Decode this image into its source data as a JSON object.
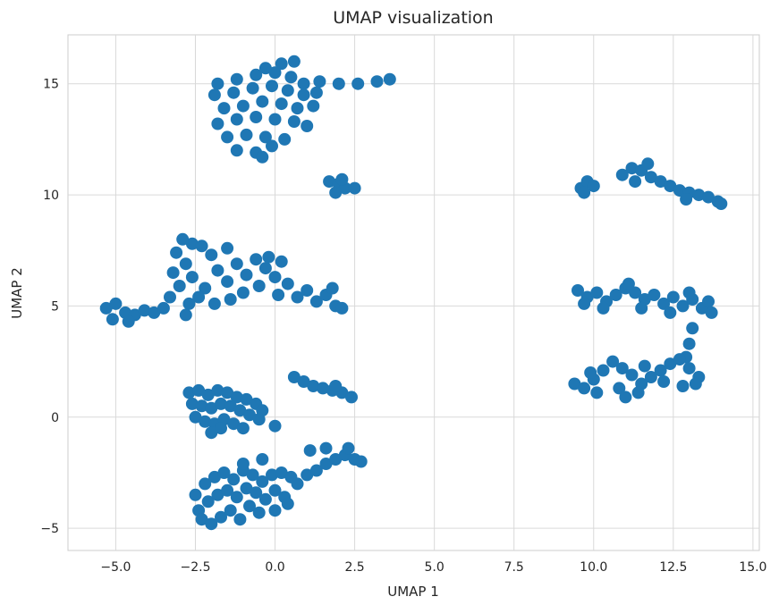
{
  "chart_data": {
    "type": "scatter",
    "title": "UMAP visualization",
    "xlabel": "UMAP 1",
    "ylabel": "UMAP 2",
    "xlim": [
      -6.5,
      15.2
    ],
    "ylim": [
      -6.0,
      17.2
    ],
    "xticks": [
      -5.0,
      -2.5,
      0.0,
      2.5,
      5.0,
      7.5,
      10.0,
      12.5,
      15.0
    ],
    "xtick_labels": [
      "−5.0",
      "−2.5",
      "0.0",
      "2.5",
      "5.0",
      "7.5",
      "10.0",
      "12.5",
      "15.0"
    ],
    "yticks": [
      -5,
      0,
      5,
      10,
      15
    ],
    "ytick_labels": [
      "−5",
      "0",
      "5",
      "10",
      "15"
    ],
    "grid": true,
    "legend": "none",
    "point_color": "#1f77b4",
    "series": [
      {
        "points": [
          [
            -1.8,
            15.0
          ],
          [
            -1.2,
            15.2
          ],
          [
            -0.6,
            15.4
          ],
          [
            0.0,
            15.5
          ],
          [
            0.5,
            15.3
          ],
          [
            0.9,
            15.0
          ],
          [
            1.4,
            15.1
          ],
          [
            2.0,
            15.0
          ],
          [
            2.6,
            15.0
          ],
          [
            3.2,
            15.1
          ],
          [
            3.6,
            15.2
          ],
          [
            -1.9,
            14.5
          ],
          [
            -1.3,
            14.6
          ],
          [
            -0.7,
            14.8
          ],
          [
            -0.1,
            14.9
          ],
          [
            0.4,
            14.7
          ],
          [
            0.9,
            14.5
          ],
          [
            1.3,
            14.6
          ],
          [
            -1.6,
            13.9
          ],
          [
            -1.0,
            14.0
          ],
          [
            -0.4,
            14.2
          ],
          [
            0.2,
            14.1
          ],
          [
            0.7,
            13.9
          ],
          [
            1.2,
            14.0
          ],
          [
            -1.8,
            13.2
          ],
          [
            -1.2,
            13.4
          ],
          [
            -0.6,
            13.5
          ],
          [
            0.0,
            13.4
          ],
          [
            0.6,
            13.3
          ],
          [
            1.0,
            13.1
          ],
          [
            -1.5,
            12.6
          ],
          [
            -0.9,
            12.7
          ],
          [
            -0.3,
            12.6
          ],
          [
            0.3,
            12.5
          ],
          [
            -1.2,
            12.0
          ],
          [
            -0.6,
            11.9
          ],
          [
            -0.1,
            12.2
          ],
          [
            -0.4,
            11.7
          ],
          [
            0.2,
            15.9
          ],
          [
            -0.3,
            15.7
          ],
          [
            0.6,
            16.0
          ],
          [
            1.7,
            10.6
          ],
          [
            2.0,
            10.5
          ],
          [
            2.2,
            10.3
          ],
          [
            2.5,
            10.3
          ],
          [
            1.9,
            10.1
          ],
          [
            2.1,
            10.7
          ]
        ]
      },
      {
        "points": [
          [
            -5.3,
            4.9
          ],
          [
            -5.0,
            5.1
          ],
          [
            -4.7,
            4.7
          ],
          [
            -4.4,
            4.6
          ],
          [
            -4.1,
            4.8
          ],
          [
            -3.8,
            4.7
          ],
          [
            -5.1,
            4.4
          ],
          [
            -4.6,
            4.3
          ],
          [
            -3.5,
            4.9
          ],
          [
            -3.3,
            5.4
          ],
          [
            -3.0,
            5.9
          ],
          [
            -3.2,
            6.5
          ],
          [
            -2.8,
            6.9
          ],
          [
            -3.1,
            7.4
          ],
          [
            -2.6,
            7.8
          ],
          [
            -2.9,
            8.0
          ],
          [
            -2.3,
            7.7
          ],
          [
            -2.0,
            7.3
          ],
          [
            -2.6,
            6.3
          ],
          [
            -2.2,
            5.8
          ],
          [
            -1.8,
            6.6
          ],
          [
            -1.5,
            6.1
          ],
          [
            -1.2,
            6.9
          ],
          [
            -0.9,
            6.4
          ],
          [
            -0.6,
            7.1
          ],
          [
            -0.3,
            6.7
          ],
          [
            0.0,
            6.3
          ],
          [
            -2.4,
            5.4
          ],
          [
            -1.9,
            5.1
          ],
          [
            -1.4,
            5.3
          ],
          [
            -1.0,
            5.6
          ],
          [
            -0.5,
            5.9
          ],
          [
            0.1,
            5.5
          ],
          [
            0.4,
            6.0
          ],
          [
            0.7,
            5.4
          ],
          [
            1.0,
            5.7
          ],
          [
            1.3,
            5.2
          ],
          [
            1.6,
            5.5
          ],
          [
            1.9,
            5.0
          ],
          [
            2.1,
            4.9
          ],
          [
            1.8,
            5.8
          ],
          [
            0.2,
            7.0
          ],
          [
            -0.2,
            7.2
          ],
          [
            -1.5,
            7.6
          ],
          [
            -2.7,
            5.1
          ],
          [
            -2.8,
            4.6
          ]
        ]
      },
      {
        "points": [
          [
            -2.7,
            1.1
          ],
          [
            -2.4,
            1.2
          ],
          [
            -2.1,
            1.0
          ],
          [
            -1.8,
            1.2
          ],
          [
            -1.5,
            1.1
          ],
          [
            -1.2,
            0.9
          ],
          [
            -0.9,
            0.8
          ],
          [
            -0.6,
            0.6
          ],
          [
            -0.4,
            0.3
          ],
          [
            -2.6,
            0.6
          ],
          [
            -2.3,
            0.5
          ],
          [
            -2.0,
            0.4
          ],
          [
            -1.7,
            0.6
          ],
          [
            -1.4,
            0.5
          ],
          [
            -1.1,
            0.3
          ],
          [
            -0.8,
            0.1
          ],
          [
            -0.5,
            -0.1
          ],
          [
            -2.5,
            0.0
          ],
          [
            -2.2,
            -0.2
          ],
          [
            -1.9,
            -0.3
          ],
          [
            -1.6,
            -0.1
          ],
          [
            -1.3,
            -0.3
          ],
          [
            -1.0,
            -0.5
          ],
          [
            -2.0,
            -0.7
          ],
          [
            -1.7,
            -0.5
          ],
          [
            0.0,
            -0.4
          ],
          [
            0.6,
            1.8
          ],
          [
            0.9,
            1.6
          ],
          [
            1.2,
            1.4
          ],
          [
            1.5,
            1.3
          ],
          [
            1.8,
            1.2
          ],
          [
            2.1,
            1.1
          ],
          [
            2.4,
            0.9
          ],
          [
            1.9,
            1.4
          ]
        ]
      },
      {
        "points": [
          [
            -2.5,
            -3.5
          ],
          [
            -2.2,
            -3.0
          ],
          [
            -1.9,
            -2.7
          ],
          [
            -1.6,
            -2.5
          ],
          [
            -1.3,
            -2.8
          ],
          [
            -1.0,
            -2.4
          ],
          [
            -0.7,
            -2.6
          ],
          [
            -0.4,
            -2.9
          ],
          [
            -0.1,
            -2.6
          ],
          [
            0.2,
            -2.5
          ],
          [
            0.5,
            -2.7
          ],
          [
            -2.4,
            -4.2
          ],
          [
            -2.1,
            -3.8
          ],
          [
            -1.8,
            -3.5
          ],
          [
            -1.5,
            -3.3
          ],
          [
            -1.2,
            -3.6
          ],
          [
            -0.9,
            -3.2
          ],
          [
            -0.6,
            -3.4
          ],
          [
            -0.3,
            -3.7
          ],
          [
            0.0,
            -3.3
          ],
          [
            0.3,
            -3.6
          ],
          [
            -2.3,
            -4.6
          ],
          [
            -2.0,
            -4.8
          ],
          [
            -1.7,
            -4.5
          ],
          [
            -1.4,
            -4.2
          ],
          [
            -1.1,
            -4.6
          ],
          [
            -0.8,
            -4.0
          ],
          [
            -0.5,
            -4.3
          ],
          [
            0.0,
            -4.2
          ],
          [
            0.4,
            -3.9
          ],
          [
            0.7,
            -3.0
          ],
          [
            1.0,
            -2.6
          ],
          [
            1.3,
            -2.4
          ],
          [
            1.6,
            -2.1
          ],
          [
            1.9,
            -1.9
          ],
          [
            2.2,
            -1.7
          ],
          [
            2.5,
            -1.9
          ],
          [
            2.7,
            -2.0
          ],
          [
            1.1,
            -1.5
          ],
          [
            1.6,
            -1.4
          ],
          [
            2.3,
            -1.4
          ],
          [
            -0.4,
            -1.9
          ],
          [
            -1.0,
            -2.1
          ]
        ]
      },
      {
        "points": [
          [
            9.6,
            10.3
          ],
          [
            9.8,
            10.6
          ],
          [
            10.0,
            10.4
          ],
          [
            9.7,
            10.1
          ],
          [
            10.9,
            10.9
          ],
          [
            11.2,
            11.2
          ],
          [
            11.5,
            11.1
          ],
          [
            11.8,
            10.8
          ],
          [
            11.3,
            10.6
          ],
          [
            11.7,
            11.4
          ],
          [
            12.1,
            10.6
          ],
          [
            12.4,
            10.4
          ],
          [
            12.7,
            10.2
          ],
          [
            13.0,
            10.1
          ],
          [
            13.3,
            10.0
          ],
          [
            13.6,
            9.9
          ],
          [
            13.9,
            9.7
          ],
          [
            14.0,
            9.6
          ],
          [
            12.9,
            9.8
          ]
        ]
      },
      {
        "points": [
          [
            9.5,
            5.7
          ],
          [
            9.8,
            5.4
          ],
          [
            10.1,
            5.6
          ],
          [
            10.4,
            5.2
          ],
          [
            10.7,
            5.5
          ],
          [
            11.0,
            5.8
          ],
          [
            11.3,
            5.6
          ],
          [
            11.6,
            5.3
          ],
          [
            11.9,
            5.5
          ],
          [
            12.2,
            5.1
          ],
          [
            12.5,
            5.4
          ],
          [
            12.8,
            5.0
          ],
          [
            13.1,
            5.3
          ],
          [
            13.4,
            4.9
          ],
          [
            13.6,
            5.2
          ],
          [
            13.7,
            4.7
          ],
          [
            9.7,
            5.1
          ],
          [
            10.3,
            4.9
          ],
          [
            11.1,
            6.0
          ],
          [
            12.4,
            4.7
          ],
          [
            11.5,
            4.9
          ],
          [
            13.0,
            5.6
          ]
        ]
      },
      {
        "points": [
          [
            13.1,
            4.0
          ],
          [
            13.0,
            3.3
          ],
          [
            12.9,
            2.7
          ],
          [
            9.4,
            1.5
          ],
          [
            9.7,
            1.3
          ],
          [
            10.0,
            1.7
          ],
          [
            10.3,
            2.1
          ],
          [
            10.6,
            2.5
          ],
          [
            10.9,
            2.2
          ],
          [
            11.2,
            1.9
          ],
          [
            11.5,
            1.5
          ],
          [
            11.8,
            1.8
          ],
          [
            12.1,
            2.1
          ],
          [
            12.4,
            2.4
          ],
          [
            12.7,
            2.6
          ],
          [
            13.0,
            2.2
          ],
          [
            13.3,
            1.8
          ],
          [
            10.1,
            1.1
          ],
          [
            10.8,
            1.3
          ],
          [
            11.0,
            0.9
          ],
          [
            11.4,
            1.1
          ],
          [
            12.2,
            1.6
          ],
          [
            12.8,
            1.4
          ],
          [
            13.2,
            1.5
          ],
          [
            9.9,
            2.0
          ],
          [
            11.6,
            2.3
          ]
        ]
      }
    ]
  }
}
